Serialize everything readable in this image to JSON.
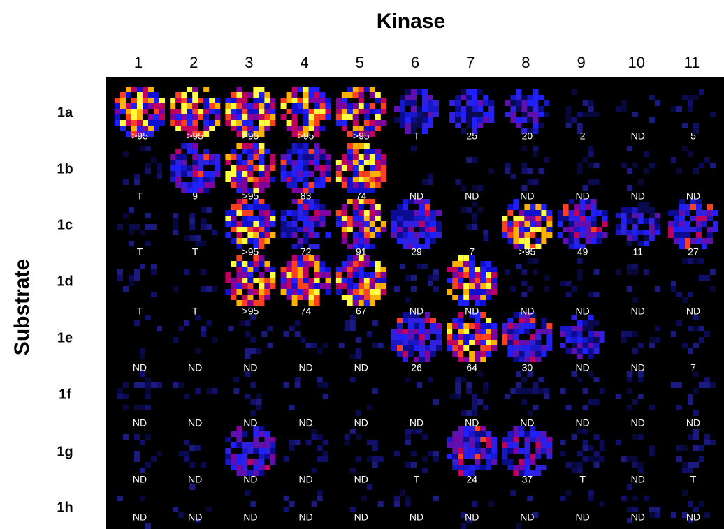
{
  "title": "Kinase",
  "row_axis_label": "Substrate",
  "columns": [
    "1",
    "2",
    "3",
    "4",
    "5",
    "6",
    "7",
    "8",
    "9",
    "10",
    "11"
  ],
  "rows": [
    {
      "label": "1a",
      "cells": [
        ">95",
        ">95",
        ">95",
        ">95",
        ">95",
        "T",
        "25",
        "20",
        "2",
        "ND",
        "5"
      ]
    },
    {
      "label": "1b",
      "cells": [
        "T",
        "9",
        ">95",
        "83",
        "74",
        "ND",
        "ND",
        "ND",
        "ND",
        "ND",
        "ND"
      ]
    },
    {
      "label": "1c",
      "cells": [
        "T",
        "T",
        ">95",
        "72",
        "91",
        "29",
        "7",
        ">95",
        "49",
        "11",
        "27"
      ]
    },
    {
      "label": "1d",
      "cells": [
        "T",
        "T",
        ">95",
        "74",
        "67",
        "ND",
        {
          "text": "ND",
          "color": "#ff2020"
        },
        "ND",
        "ND",
        "ND",
        "ND"
      ]
    },
    {
      "label": "1e",
      "cells": [
        "ND",
        "ND",
        "ND",
        "ND",
        "ND",
        "26",
        "64",
        "30",
        "ND",
        "ND",
        "7"
      ]
    },
    {
      "label": "1f",
      "cells": [
        "ND",
        "ND",
        "ND",
        "ND",
        "ND",
        "ND",
        "ND",
        "ND",
        "ND",
        "ND",
        "ND"
      ]
    },
    {
      "label": "1g",
      "cells": [
        "ND",
        "ND",
        {
          "text": "ND",
          "color": "#ff2020"
        },
        "ND",
        "ND",
        "T",
        "24",
        "37",
        "T",
        "ND",
        "T"
      ]
    },
    {
      "label": "1h",
      "cells": [
        "ND",
        "ND",
        "ND",
        "ND",
        "ND",
        "ND",
        "ND",
        "ND",
        "ND",
        "ND",
        "ND"
      ]
    }
  ]
}
